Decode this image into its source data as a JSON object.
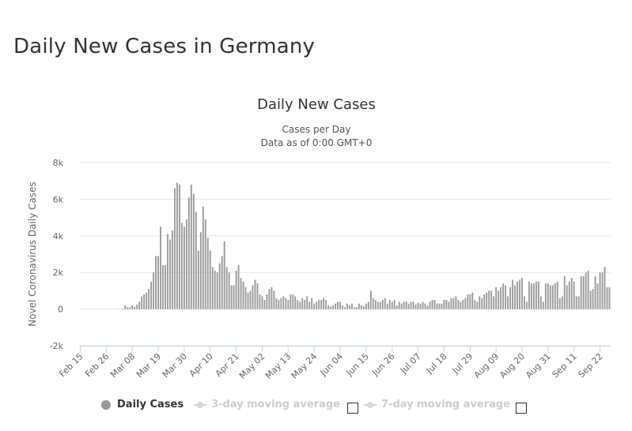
{
  "page": {
    "title": "Daily New Cases in Germany"
  },
  "legend": {
    "items": [
      {
        "label": "Daily Cases",
        "active": true
      },
      {
        "label": "3-day moving average",
        "active": false
      },
      {
        "label": "7-day moving average",
        "active": false
      }
    ]
  },
  "chart_data": {
    "type": "bar",
    "title": "Daily New Cases",
    "subtitle_lines": [
      "Cases per Day",
      "Data as of 0:00 GMT+0"
    ],
    "ylabel": "Novel Coronavirus Daily Cases",
    "xlabel": "",
    "ylim": [
      -2000,
      8000
    ],
    "yticks": [
      -2000,
      0,
      2000,
      4000,
      6000,
      8000
    ],
    "ytick_labels": [
      "-2k",
      "0",
      "2k",
      "4k",
      "6k",
      "8k"
    ],
    "xtick_labels": [
      "Feb 15",
      "Feb 26",
      "Mar 08",
      "Mar 19",
      "Mar 30",
      "Apr 10",
      "Apr 21",
      "May 02",
      "May 13",
      "May 24",
      "Jun 04",
      "Jun 15",
      "Jun 26",
      "Jul 07",
      "Jul 18",
      "Jul 29",
      "Aug 09",
      "Aug 20",
      "Aug 31",
      "Sep 11",
      "Sep 22"
    ],
    "start_date": "Feb 15",
    "grid": true,
    "bar_color": "#999999",
    "series": [
      {
        "name": "Daily Cases",
        "values": [
          0,
          0,
          0,
          0,
          0,
          0,
          0,
          0,
          0,
          0,
          0,
          0,
          0,
          0,
          0,
          0,
          20,
          10,
          30,
          200,
          100,
          100,
          200,
          130,
          250,
          400,
          700,
          800,
          900,
          1100,
          1500,
          2000,
          2900,
          2900,
          4500,
          2400,
          2400,
          4100,
          3800,
          4300,
          6600,
          6900,
          6800,
          4700,
          4500,
          4900,
          6100,
          6800,
          6300,
          5300,
          3200,
          4200,
          5600,
          4900,
          3900,
          3200,
          2300,
          2100,
          2000,
          2500,
          2900,
          3700,
          2300,
          2000,
          1300,
          1300,
          2100,
          2400,
          1700,
          1500,
          1200,
          900,
          1000,
          1300,
          1600,
          1400,
          800,
          700,
          500,
          800,
          1100,
          1200,
          1000,
          600,
          500,
          600,
          700,
          600,
          500,
          800,
          800,
          700,
          500,
          400,
          600,
          500,
          700,
          400,
          600,
          300,
          400,
          500,
          500,
          600,
          500,
          200,
          150,
          200,
          300,
          400,
          400,
          200,
          100,
          300,
          200,
          300,
          100,
          100,
          300,
          200,
          150,
          300,
          400,
          1000,
          600,
          500,
          400,
          400,
          500,
          600,
          300,
          500,
          400,
          500,
          200,
          400,
          300,
          400,
          400,
          300,
          400,
          400,
          250,
          350,
          300,
          400,
          300,
          200,
          400,
          500,
          500,
          300,
          300,
          300,
          500,
          500,
          400,
          600,
          600,
          700,
          500,
          400,
          500,
          600,
          800,
          800,
          900,
          500,
          400,
          700,
          600,
          800,
          900,
          1000,
          1000,
          700,
          1200,
          1000,
          1200,
          1400,
          1300,
          700,
          1200,
          1600,
          1300,
          1500,
          1600,
          1700,
          700,
          400,
          1500,
          1400,
          1400,
          1500,
          1500,
          700,
          400,
          1400,
          1400,
          1300,
          1300,
          1400,
          1500,
          600,
          700,
          1800,
          1300,
          1500,
          1700,
          1500,
          700,
          700,
          1800,
          1800,
          2000,
          2100,
          1000,
          1100,
          1800,
          1400,
          2000,
          2000,
          2300,
          1200,
          1200
        ]
      }
    ]
  }
}
